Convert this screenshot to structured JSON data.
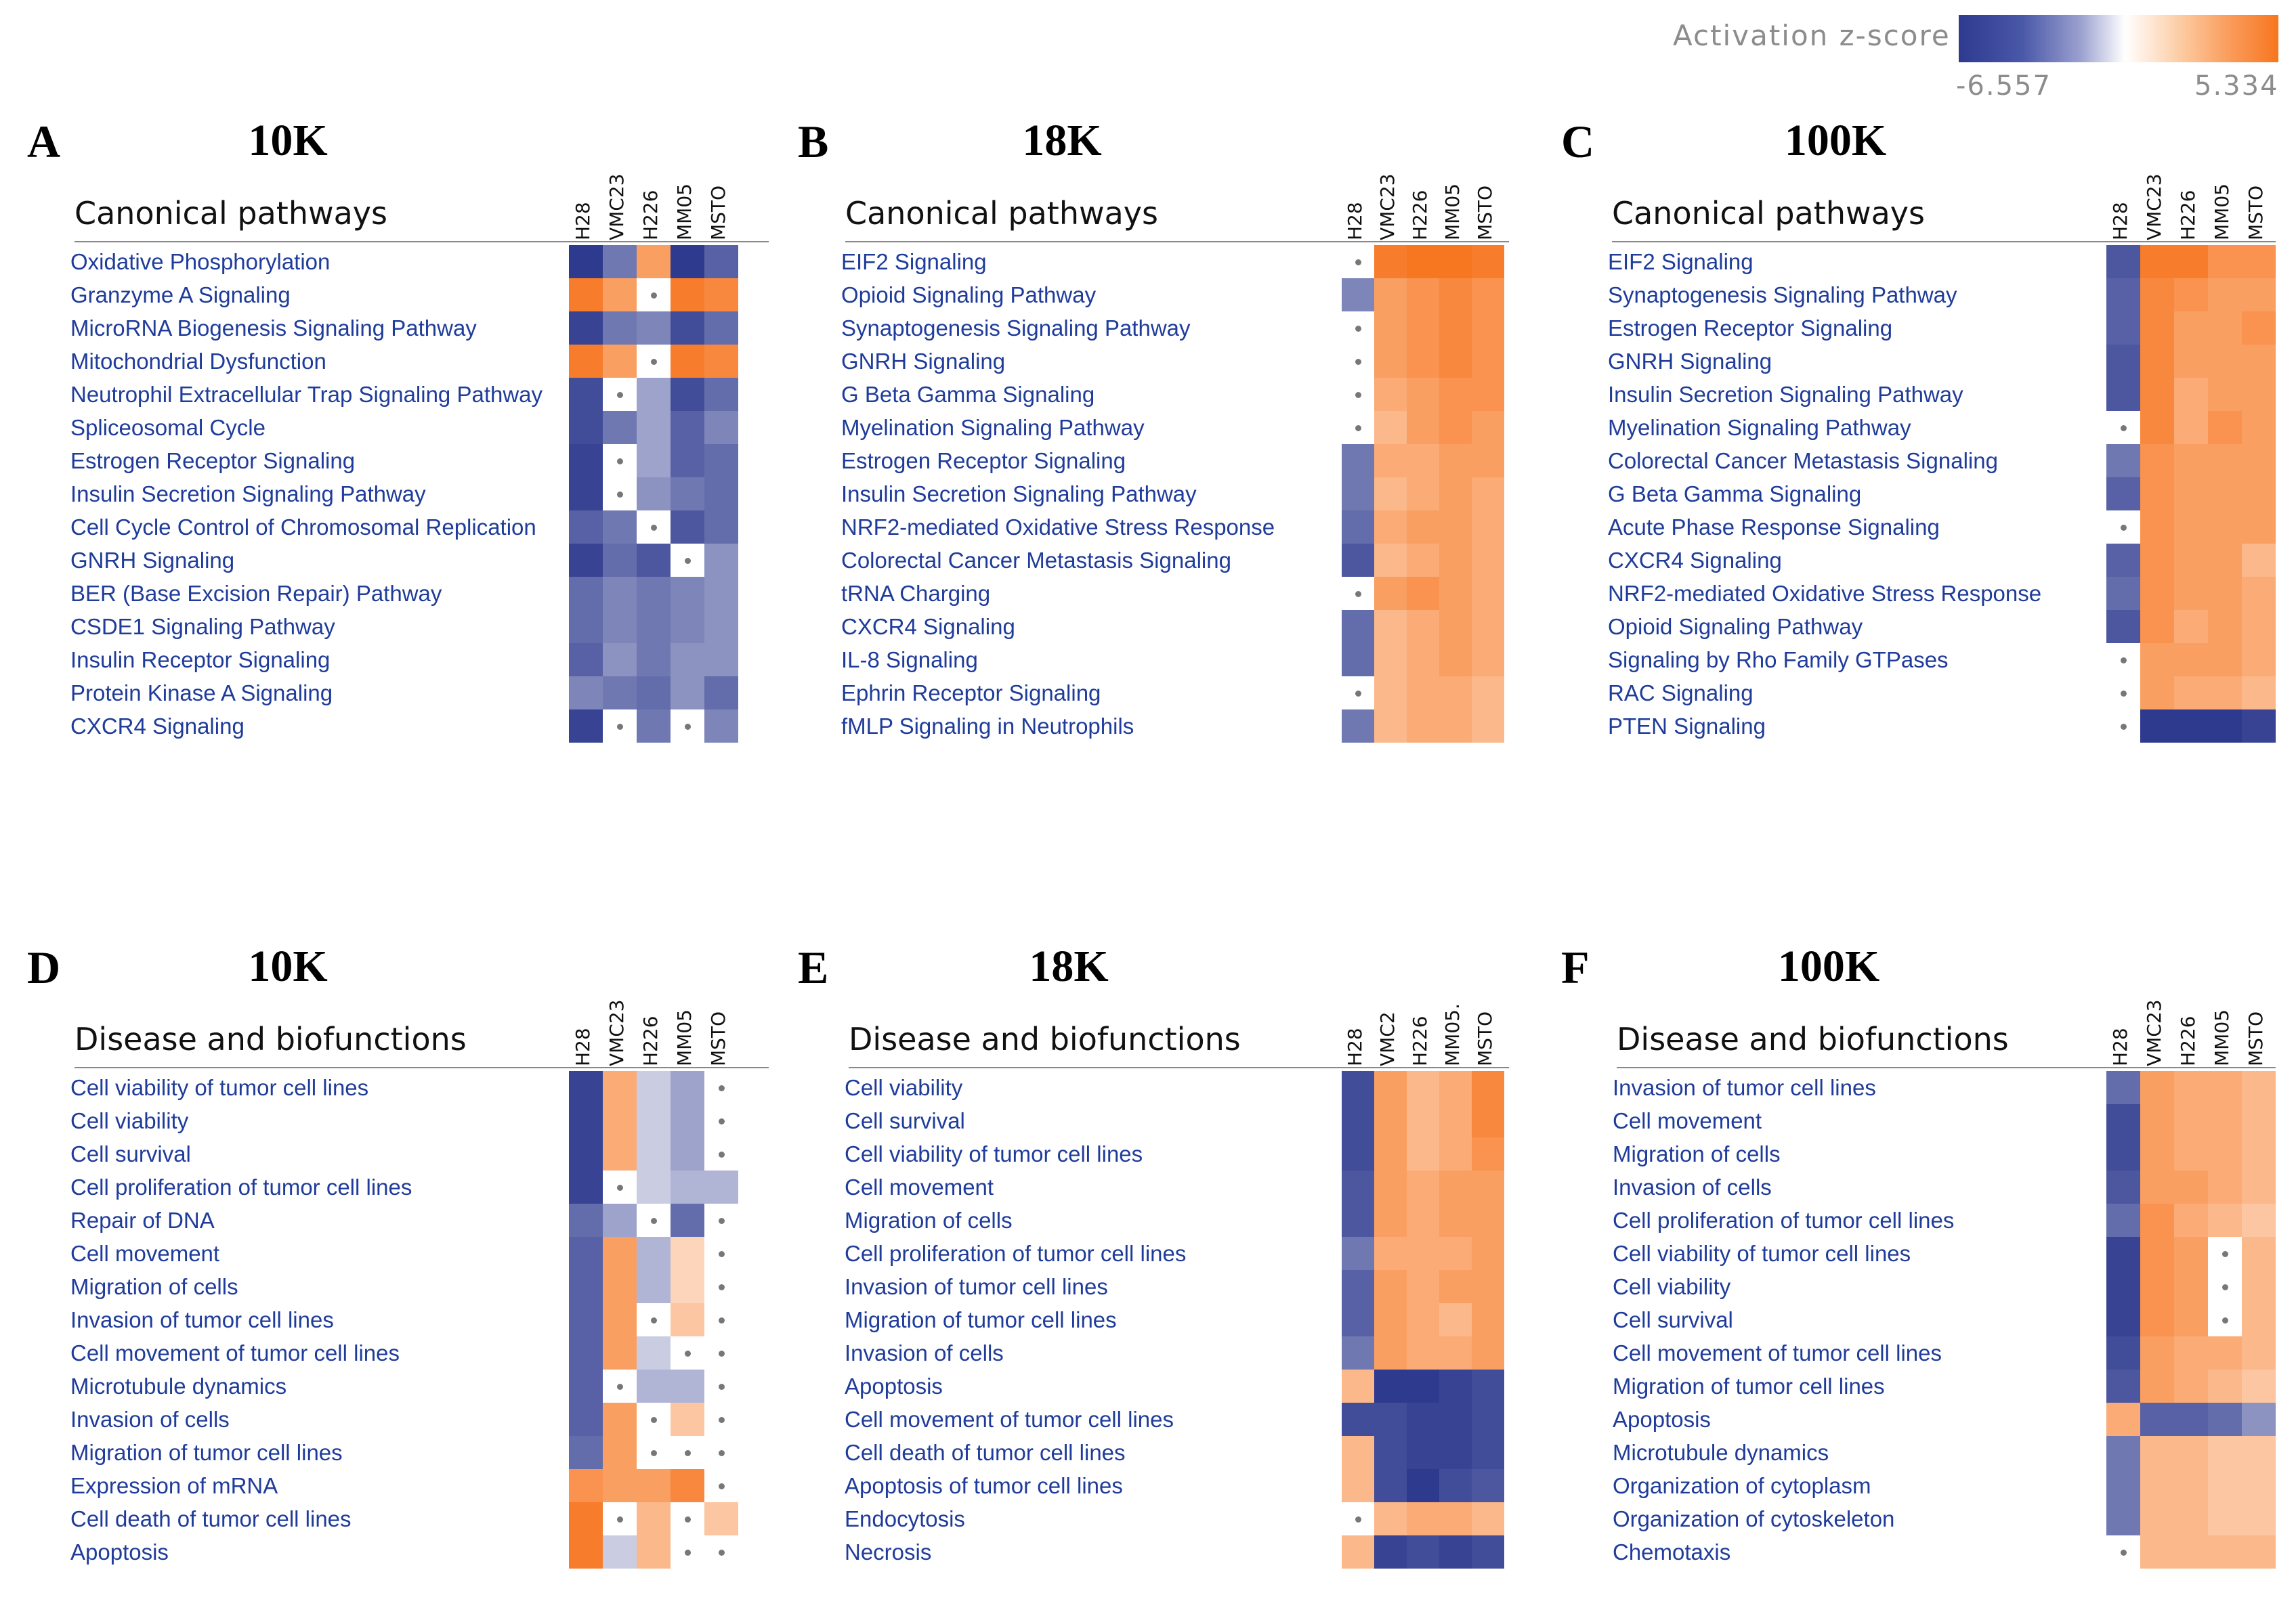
{
  "legend": {
    "title": "Activation z-score",
    "min_label": "-6.557",
    "max_label": "5.334",
    "min": -6.557,
    "max": 5.334,
    "colors": {
      "low": "#2e3a8e",
      "mid": "#ffffff",
      "high": "#f77620"
    }
  },
  "chart_data": [
    {
      "type": "heatmap",
      "panel": "A",
      "label": "10K",
      "section": "Canonical pathways",
      "columns": [
        "H28",
        "VMC23",
        "H226",
        "MM05",
        "MSTO"
      ],
      "rows": [
        "Oxidative Phosphorylation",
        "Granzyme A Signaling",
        "MicroRNA Biogenesis Signaling Pathway",
        "Mitochondrial Dysfunction",
        "Neutrophil Extracellular Trap Signaling Pathway",
        "Spliceosomal Cycle",
        "Estrogen Receptor Signaling",
        "Insulin Secretion Signaling Pathway",
        "Cell Cycle Control of Chromosomal Replication",
        "GNRH Signaling",
        "BER (Base Excision Repair) Pathway",
        "CSDE1 Signaling Pathway",
        "Insulin Receptor Signaling",
        "Protein Kinase A Signaling",
        "CXCR4 Signaling"
      ],
      "values": [
        [
          -6.0,
          -3.0,
          3.0,
          -6.0,
          -4.0
        ],
        [
          4.5,
          3.0,
          null,
          4.5,
          4.0
        ],
        [
          -5.5,
          -3.0,
          -2.5,
          -5.0,
          -3.5
        ],
        [
          4.5,
          3.0,
          null,
          4.5,
          4.0
        ],
        [
          -5.0,
          null,
          -1.5,
          -5.0,
          -3.5
        ],
        [
          -5.0,
          -3.0,
          -1.5,
          -4.0,
          -2.5
        ],
        [
          -5.5,
          null,
          -1.5,
          -4.0,
          -3.5
        ],
        [
          -5.5,
          null,
          -2.0,
          -3.0,
          -3.5
        ],
        [
          -4.0,
          -3.0,
          null,
          -4.5,
          -3.5
        ],
        [
          -5.5,
          -3.5,
          -4.5,
          null,
          -2.0
        ],
        [
          -3.5,
          -2.5,
          -3.0,
          -2.5,
          -2.0
        ],
        [
          -3.5,
          -2.5,
          -3.0,
          -2.5,
          -2.0
        ],
        [
          -4.0,
          -2.0,
          -3.0,
          -2.0,
          -2.0
        ],
        [
          -2.5,
          -3.0,
          -3.5,
          -2.0,
          -3.5
        ],
        [
          -5.5,
          null,
          -3.0,
          null,
          -2.5
        ]
      ]
    },
    {
      "type": "heatmap",
      "panel": "B",
      "label": "18K",
      "section": "Canonical pathways",
      "columns": [
        "H28",
        "VMC23",
        "H226",
        "MM05",
        "MSTO"
      ],
      "rows": [
        "EIF2 Signaling",
        "Opioid Signaling Pathway",
        "Synaptogenesis Signaling Pathway",
        "GNRH Signaling",
        "G Beta Gamma Signaling",
        "Myelination Signaling Pathway",
        "Estrogen Receptor Signaling",
        "Insulin Secretion Signaling Pathway",
        "NRF2-mediated Oxidative Stress Response",
        "Colorectal Cancer Metastasis Signaling",
        "tRNA Charging",
        "CXCR4 Signaling",
        "IL-8 Signaling",
        "Ephrin Receptor Signaling",
        "fMLP Signaling in Neutrophils"
      ],
      "values": [
        [
          null,
          4.5,
          5.0,
          5.0,
          4.5
        ],
        [
          -2.5,
          3.0,
          3.5,
          4.0,
          3.5
        ],
        [
          null,
          3.0,
          3.5,
          4.0,
          3.5
        ],
        [
          null,
          3.0,
          3.5,
          4.0,
          3.5
        ],
        [
          null,
          2.5,
          3.0,
          3.5,
          3.5
        ],
        [
          null,
          2.0,
          3.0,
          3.5,
          3.0
        ],
        [
          -3.0,
          2.5,
          2.5,
          3.0,
          3.0
        ],
        [
          -3.0,
          2.0,
          2.5,
          3.0,
          2.5
        ],
        [
          -3.5,
          2.5,
          3.0,
          3.0,
          2.5
        ],
        [
          -4.5,
          2.0,
          2.5,
          3.0,
          2.5
        ],
        [
          null,
          3.0,
          3.5,
          3.0,
          2.5
        ],
        [
          -3.5,
          2.0,
          2.5,
          3.0,
          2.5
        ],
        [
          -3.5,
          2.0,
          2.5,
          3.0,
          2.5
        ],
        [
          null,
          2.0,
          2.5,
          2.5,
          2.0
        ],
        [
          -3.0,
          2.0,
          2.5,
          2.5,
          2.0
        ]
      ]
    },
    {
      "type": "heatmap",
      "panel": "C",
      "label": "100K",
      "section": "Canonical pathways",
      "columns": [
        "H28",
        "VMC23",
        "H226",
        "MM05",
        "MSTO"
      ],
      "rows": [
        "EIF2 Signaling",
        "Synaptogenesis Signaling Pathway",
        "Estrogen Receptor Signaling",
        "GNRH Signaling",
        "Insulin Secretion Signaling Pathway",
        "Myelination Signaling Pathway",
        "Colorectal Cancer Metastasis Signaling",
        "G Beta Gamma Signaling",
        "Acute Phase Response Signaling",
        "CXCR4 Signaling",
        "NRF2-mediated Oxidative Stress Response",
        "Opioid Signaling Pathway",
        "Signaling by Rho Family GTPases",
        "RAC Signaling",
        "PTEN Signaling"
      ],
      "values": [
        [
          -4.5,
          4.5,
          4.5,
          3.5,
          3.5
        ],
        [
          -4.0,
          4.0,
          3.5,
          3.0,
          3.0
        ],
        [
          -4.0,
          4.0,
          3.0,
          3.0,
          3.5
        ],
        [
          -4.5,
          4.0,
          3.0,
          3.0,
          3.0
        ],
        [
          -4.5,
          4.0,
          2.5,
          3.0,
          3.0
        ],
        [
          null,
          4.0,
          2.5,
          3.5,
          3.0
        ],
        [
          -3.0,
          3.5,
          3.0,
          3.0,
          3.0
        ],
        [
          -4.0,
          3.5,
          3.0,
          3.0,
          3.0
        ],
        [
          null,
          3.5,
          3.0,
          3.0,
          3.0
        ],
        [
          -4.0,
          3.5,
          3.0,
          3.0,
          2.0
        ],
        [
          -3.5,
          3.5,
          3.0,
          3.0,
          2.5
        ],
        [
          -4.5,
          3.5,
          2.5,
          3.0,
          2.5
        ],
        [
          null,
          3.0,
          3.0,
          3.0,
          2.5
        ],
        [
          null,
          3.0,
          2.5,
          2.5,
          2.0
        ],
        [
          null,
          -6.0,
          -6.0,
          -6.0,
          -5.5
        ]
      ]
    },
    {
      "type": "heatmap",
      "panel": "D",
      "label": "10K",
      "section": "Disease and biofunctions",
      "columns": [
        "H28",
        "VMC23",
        "H226",
        "MM05",
        "MSTO"
      ],
      "rows": [
        "Cell viability of tumor cell lines",
        "Cell viability",
        "Cell survival",
        "Cell proliferation of tumor cell lines",
        "Repair of DNA",
        "Cell movement",
        "Migration of cells",
        "Invasion of tumor cell lines",
        "Cell movement of tumor cell lines",
        "Microtubule dynamics",
        "Invasion of cells",
        "Migration of tumor cell lines",
        "Expression of mRNA",
        "Cell death of tumor cell lines",
        "Apoptosis"
      ],
      "values": [
        [
          -5.5,
          2.5,
          -0.5,
          -1.5,
          null
        ],
        [
          -5.5,
          2.5,
          -0.5,
          -1.5,
          null
        ],
        [
          -5.5,
          2.5,
          -0.5,
          -1.5,
          null
        ],
        [
          -5.5,
          null,
          -0.5,
          -1.0,
          -1.0
        ],
        [
          -3.5,
          -1.5,
          null,
          -3.5,
          null
        ],
        [
          -4.0,
          3.0,
          -1.0,
          1.0,
          null
        ],
        [
          -4.0,
          3.0,
          -1.0,
          1.0,
          null
        ],
        [
          -4.0,
          3.0,
          null,
          1.5,
          null
        ],
        [
          -4.0,
          3.0,
          -0.5,
          null,
          null
        ],
        [
          -4.0,
          null,
          -1.0,
          -1.0,
          null
        ],
        [
          -4.0,
          3.0,
          null,
          1.5,
          null
        ],
        [
          -3.5,
          3.0,
          null,
          null,
          null
        ],
        [
          3.5,
          3.0,
          3.0,
          4.0,
          null
        ],
        [
          4.5,
          null,
          2.0,
          null,
          1.5
        ],
        [
          4.5,
          -0.5,
          2.0,
          null,
          null
        ]
      ]
    },
    {
      "type": "heatmap",
      "panel": "E",
      "label": "18K",
      "section": "Disease and biofunctions",
      "columns": [
        "H28",
        "VMC2",
        "H226",
        "MM05.",
        "MSTO"
      ],
      "rows": [
        "Cell viability",
        "Cell survival",
        "Cell viability of tumor cell lines",
        "Cell movement",
        "Migration of cells",
        "Cell proliferation of tumor cell lines",
        "Invasion of tumor cell lines",
        "Migration of tumor cell lines",
        "Invasion of cells",
        "Apoptosis",
        "Cell movement of tumor cell lines",
        "Cell death of tumor cell lines",
        "Apoptosis of tumor cell lines",
        "Endocytosis",
        "Necrosis"
      ],
      "values": [
        [
          -5.0,
          3.0,
          2.0,
          2.5,
          4.0
        ],
        [
          -5.0,
          3.0,
          2.0,
          2.5,
          4.0
        ],
        [
          -5.0,
          3.0,
          2.0,
          2.5,
          3.5
        ],
        [
          -4.5,
          3.0,
          2.5,
          3.0,
          3.0
        ],
        [
          -4.5,
          3.0,
          2.5,
          3.0,
          3.0
        ],
        [
          -3.0,
          2.5,
          2.5,
          2.5,
          3.0
        ],
        [
          -4.0,
          3.0,
          2.5,
          3.0,
          3.0
        ],
        [
          -4.0,
          3.0,
          2.5,
          2.0,
          3.0
        ],
        [
          -3.0,
          3.0,
          2.5,
          2.5,
          3.0
        ],
        [
          2.0,
          -6.0,
          -6.5,
          -5.5,
          -5.0
        ],
        [
          -5.0,
          -5.0,
          -5.5,
          -5.5,
          -5.0
        ],
        [
          2.0,
          -5.0,
          -5.5,
          -5.5,
          -5.0
        ],
        [
          2.0,
          -5.0,
          -6.0,
          -5.0,
          -4.5
        ],
        [
          null,
          2.0,
          2.5,
          2.5,
          2.0
        ],
        [
          2.0,
          -5.5,
          -5.0,
          -5.5,
          -5.0
        ]
      ]
    },
    {
      "type": "heatmap",
      "panel": "F",
      "label": "100K",
      "section": "Disease and biofunctions",
      "columns": [
        "H28",
        "VMC23",
        "H226",
        "MM05",
        "MSTO"
      ],
      "rows": [
        "Invasion of tumor cell lines",
        "Cell movement",
        "Migration of cells",
        "Invasion of cells",
        "Cell proliferation of tumor cell lines",
        "Cell viability of tumor cell lines",
        "Cell viability",
        "Cell survival",
        "Cell movement of tumor cell lines",
        "Migration of tumor cell lines",
        "Apoptosis",
        "Microtubule dynamics",
        "Organization of cytoplasm",
        "Organization of cytoskeleton",
        "Chemotaxis"
      ],
      "values": [
        [
          -3.5,
          3.0,
          2.5,
          2.5,
          2.0
        ],
        [
          -5.0,
          3.0,
          2.5,
          2.5,
          2.0
        ],
        [
          -5.0,
          3.0,
          2.5,
          2.5,
          2.0
        ],
        [
          -4.5,
          3.0,
          3.0,
          2.5,
          2.0
        ],
        [
          -3.5,
          3.5,
          2.5,
          2.0,
          1.5
        ],
        [
          -5.5,
          3.5,
          3.0,
          null,
          2.0
        ],
        [
          -5.5,
          3.5,
          3.0,
          null,
          2.0
        ],
        [
          -5.5,
          3.5,
          3.0,
          null,
          2.0
        ],
        [
          -5.0,
          3.0,
          2.5,
          2.5,
          2.0
        ],
        [
          -4.5,
          3.0,
          2.5,
          2.0,
          1.5
        ],
        [
          2.5,
          -4.0,
          -4.0,
          -3.5,
          -2.0
        ],
        [
          -3.0,
          2.0,
          2.0,
          1.5,
          1.5
        ],
        [
          -3.0,
          2.0,
          2.0,
          1.5,
          1.5
        ],
        [
          -3.0,
          2.0,
          2.0,
          1.5,
          1.5
        ],
        [
          null,
          2.0,
          2.0,
          2.0,
          2.0
        ]
      ]
    }
  ]
}
